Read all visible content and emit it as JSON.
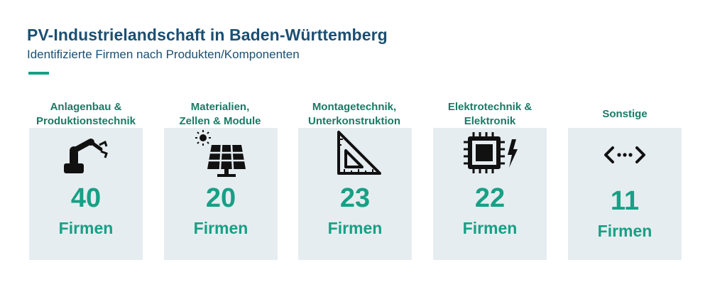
{
  "header": {
    "title": "PV-Industrielandschaft in Baden-Württemberg",
    "subtitle": "Identifizierte Firmen nach Produkten/Komponenten"
  },
  "colors": {
    "title": "#1b4f72",
    "accent": "#17a085",
    "card_bg": "#e6edf0"
  },
  "categories": [
    {
      "label_line1": "Anlagenbau &",
      "label_line2": "Produktionstechnik",
      "count": "40",
      "unit": "Firmen",
      "icon": "robot-arm-icon"
    },
    {
      "label_line1": "Materialien,",
      "label_line2": "Zellen & Module",
      "count": "20",
      "unit": "Firmen",
      "icon": "solar-panel-icon"
    },
    {
      "label_line1": "Montagetechnik,",
      "label_line2": "Unterkonstruktion",
      "count": "23",
      "unit": "Firmen",
      "icon": "set-square-icon"
    },
    {
      "label_line1": "Elektrotechnik &",
      "label_line2": "Elektronik",
      "count": "22",
      "unit": "Firmen",
      "icon": "chip-icon"
    },
    {
      "label_line1": "Sonstige",
      "label_line2": "",
      "count": "11",
      "unit": "Firmen",
      "icon": "more-arrows-icon"
    }
  ]
}
